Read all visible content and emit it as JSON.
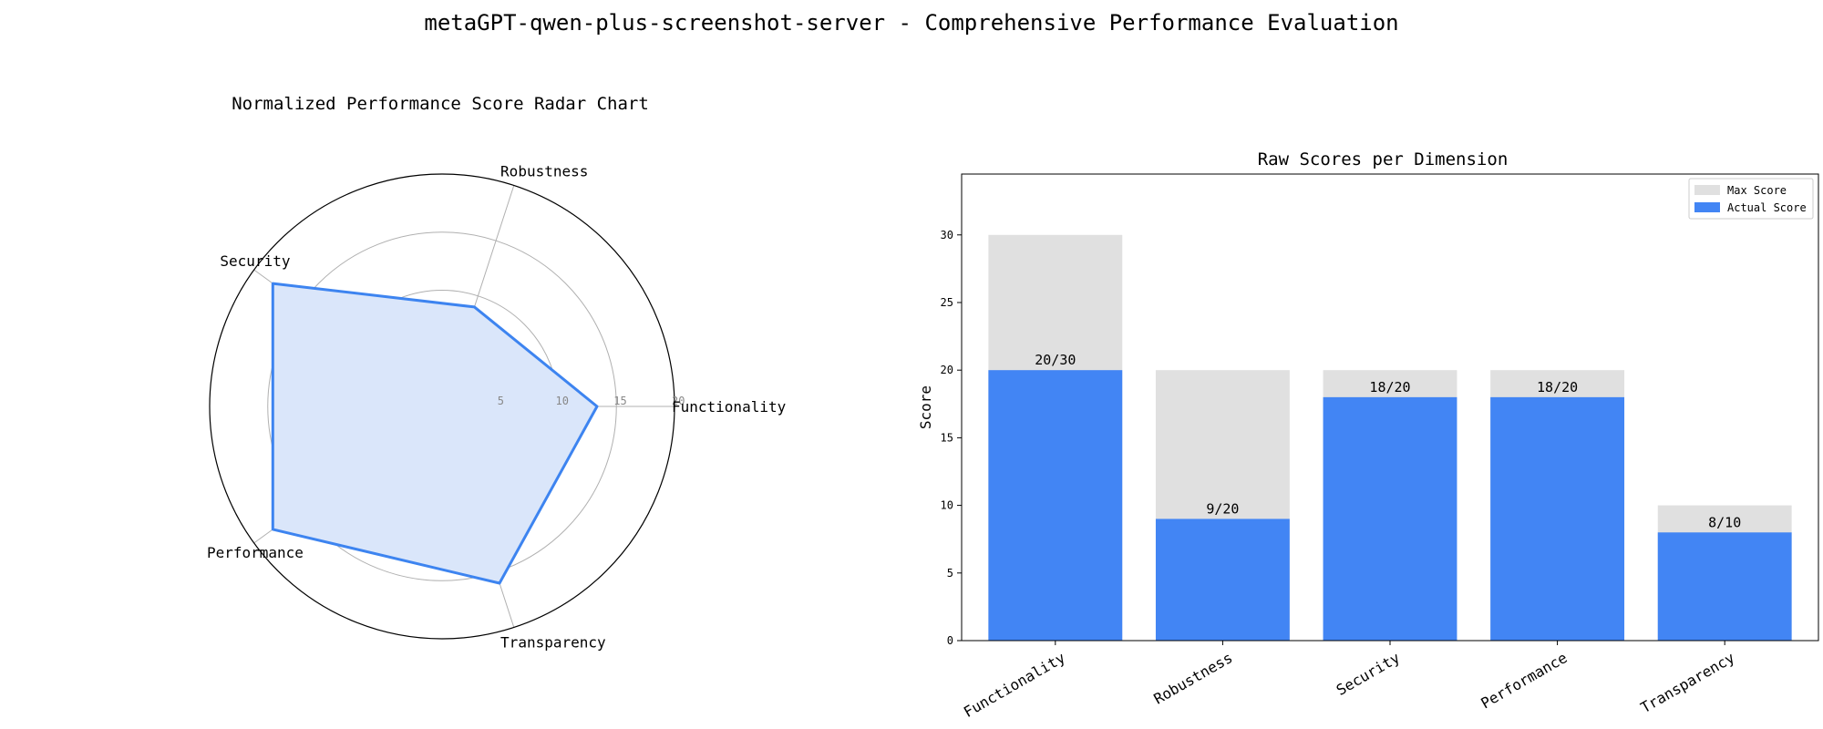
{
  "figure": {
    "suptitle": "metaGPT-qwen-plus-screenshot-server - Comprehensive Performance Evaluation"
  },
  "colors": {
    "actual": "#4285f4",
    "max": "#e0e0e0",
    "radar_line": "#3d84f0",
    "radar_fill": "#dae6fa",
    "grid": "#b0b0b0"
  },
  "chart_data": [
    {
      "type": "radar",
      "title": "Normalized Performance Score Radar Chart",
      "categories": [
        "Functionality",
        "Robustness",
        "Security",
        "Performance",
        "Transparency"
      ],
      "values": [
        13.33,
        9,
        18,
        18,
        16
      ],
      "rlim": [
        0,
        20
      ],
      "rticks": [
        5,
        10,
        15,
        20
      ],
      "rtick_labels": [
        "5",
        "10",
        "15",
        "20"
      ]
    },
    {
      "type": "bar",
      "title": "Raw Scores per Dimension",
      "categories": [
        "Functionality",
        "Robustness",
        "Security",
        "Performance",
        "Transparency"
      ],
      "series": [
        {
          "name": "Max Score",
          "values": [
            30,
            20,
            20,
            20,
            10
          ]
        },
        {
          "name": "Actual Score",
          "values": [
            20,
            9,
            18,
            18,
            8
          ]
        }
      ],
      "data_labels": [
        "20/30",
        "9/20",
        "18/20",
        "18/20",
        "8/10"
      ],
      "ylabel": "Score",
      "ylim": [
        0,
        34.5
      ],
      "yticks": [
        0,
        5,
        10,
        15,
        20,
        25,
        30
      ],
      "legend": "top-right",
      "grid": false
    }
  ]
}
